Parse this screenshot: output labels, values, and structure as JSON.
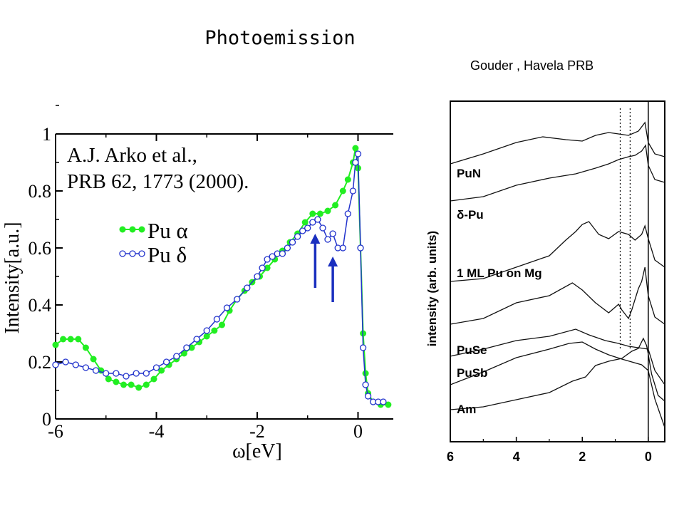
{
  "title": "Photoemission",
  "attribution": "Gouder , Havela PRB",
  "chart_data": [
    {
      "type": "line",
      "annotation": [
        "A.J. Arko et al.,",
        "PRB 62, 1773 (2000)."
      ],
      "xlabel": "ω[eV]",
      "ylabel": "Intensity[a.u.]",
      "xlim": [
        -6,
        0.7
      ],
      "ylim": [
        0,
        1
      ],
      "xticks": [
        -6,
        -4,
        -2,
        0
      ],
      "xtick_labels": [
        "-6",
        "-4",
        "-2",
        "0"
      ],
      "yticks": [
        0,
        0.2,
        0.4,
        0.6,
        0.8,
        1
      ],
      "ytick_labels": [
        "0",
        "0.2",
        "0.4",
        "0.6",
        "0.8",
        "1"
      ],
      "grid": false,
      "legend_position": "center-left",
      "arrows": [
        {
          "x": -0.85,
          "y_from": 0.46,
          "y_to": 0.65
        },
        {
          "x": -0.5,
          "y_from": 0.41,
          "y_to": 0.57
        }
      ],
      "series": [
        {
          "name": "Pu α",
          "color": "#22ee22",
          "marker": "filled-circle",
          "x": [
            -6.0,
            -5.85,
            -5.7,
            -5.55,
            -5.4,
            -5.25,
            -5.1,
            -4.95,
            -4.8,
            -4.65,
            -4.5,
            -4.35,
            -4.2,
            -4.05,
            -3.9,
            -3.75,
            -3.6,
            -3.45,
            -3.3,
            -3.15,
            -3.0,
            -2.85,
            -2.7,
            -2.55,
            -2.4,
            -2.25,
            -2.1,
            -1.95,
            -1.8,
            -1.65,
            -1.5,
            -1.35,
            -1.2,
            -1.05,
            -0.9,
            -0.75,
            -0.6,
            -0.45,
            -0.3,
            -0.2,
            -0.1,
            -0.05,
            0.0,
            0.05,
            0.1,
            0.15,
            0.2,
            0.3,
            0.45,
            0.6
          ],
          "values": [
            0.26,
            0.28,
            0.28,
            0.28,
            0.25,
            0.21,
            0.17,
            0.14,
            0.13,
            0.12,
            0.12,
            0.11,
            0.12,
            0.14,
            0.17,
            0.19,
            0.21,
            0.23,
            0.25,
            0.27,
            0.29,
            0.31,
            0.33,
            0.38,
            0.42,
            0.45,
            0.48,
            0.5,
            0.53,
            0.56,
            0.59,
            0.62,
            0.65,
            0.69,
            0.72,
            0.72,
            0.73,
            0.75,
            0.8,
            0.84,
            0.9,
            0.95,
            0.88,
            0.6,
            0.3,
            0.16,
            0.09,
            0.06,
            0.05,
            0.05
          ]
        },
        {
          "name": "Pu δ",
          "color": "#2233cc",
          "marker": "open-circle",
          "x": [
            -6.0,
            -5.8,
            -5.6,
            -5.4,
            -5.2,
            -5.0,
            -4.8,
            -4.6,
            -4.4,
            -4.2,
            -4.0,
            -3.8,
            -3.6,
            -3.4,
            -3.2,
            -3.0,
            -2.8,
            -2.6,
            -2.4,
            -2.2,
            -2.0,
            -1.9,
            -1.8,
            -1.7,
            -1.6,
            -1.5,
            -1.4,
            -1.3,
            -1.2,
            -1.1,
            -1.0,
            -0.9,
            -0.8,
            -0.7,
            -0.6,
            -0.5,
            -0.4,
            -0.3,
            -0.2,
            -0.1,
            -0.05,
            0.0,
            0.05,
            0.1,
            0.15,
            0.2,
            0.3,
            0.4,
            0.5
          ],
          "values": [
            0.19,
            0.2,
            0.19,
            0.18,
            0.17,
            0.16,
            0.16,
            0.15,
            0.16,
            0.16,
            0.18,
            0.2,
            0.22,
            0.25,
            0.28,
            0.31,
            0.35,
            0.39,
            0.42,
            0.46,
            0.5,
            0.53,
            0.56,
            0.57,
            0.58,
            0.58,
            0.6,
            0.62,
            0.64,
            0.66,
            0.67,
            0.69,
            0.7,
            0.67,
            0.63,
            0.65,
            0.6,
            0.6,
            0.72,
            0.8,
            0.9,
            0.93,
            0.6,
            0.25,
            0.12,
            0.08,
            0.06,
            0.06,
            0.06
          ]
        }
      ]
    },
    {
      "type": "line",
      "xlabel": "",
      "ylabel": "intensity (arb. units)",
      "xlim": [
        6,
        -0.5
      ],
      "xticks": [
        6,
        4,
        2,
        0
      ],
      "xtick_labels": [
        "6",
        "4",
        "2",
        "0"
      ],
      "grid": false,
      "dotted_reference_x": [
        0.85,
        0.55
      ],
      "solid_reference_x": [
        0
      ],
      "series_labels": [
        "PuN",
        "δ-Pu",
        "1 ML Pu on Mg",
        "PuSe",
        "PuSb",
        "Am"
      ],
      "spectra_bottom_to_top": [
        "Am",
        "PuSb",
        "PuSe",
        "1 ML Pu on Mg",
        "δ-Pu",
        "PuN"
      ]
    }
  ]
}
